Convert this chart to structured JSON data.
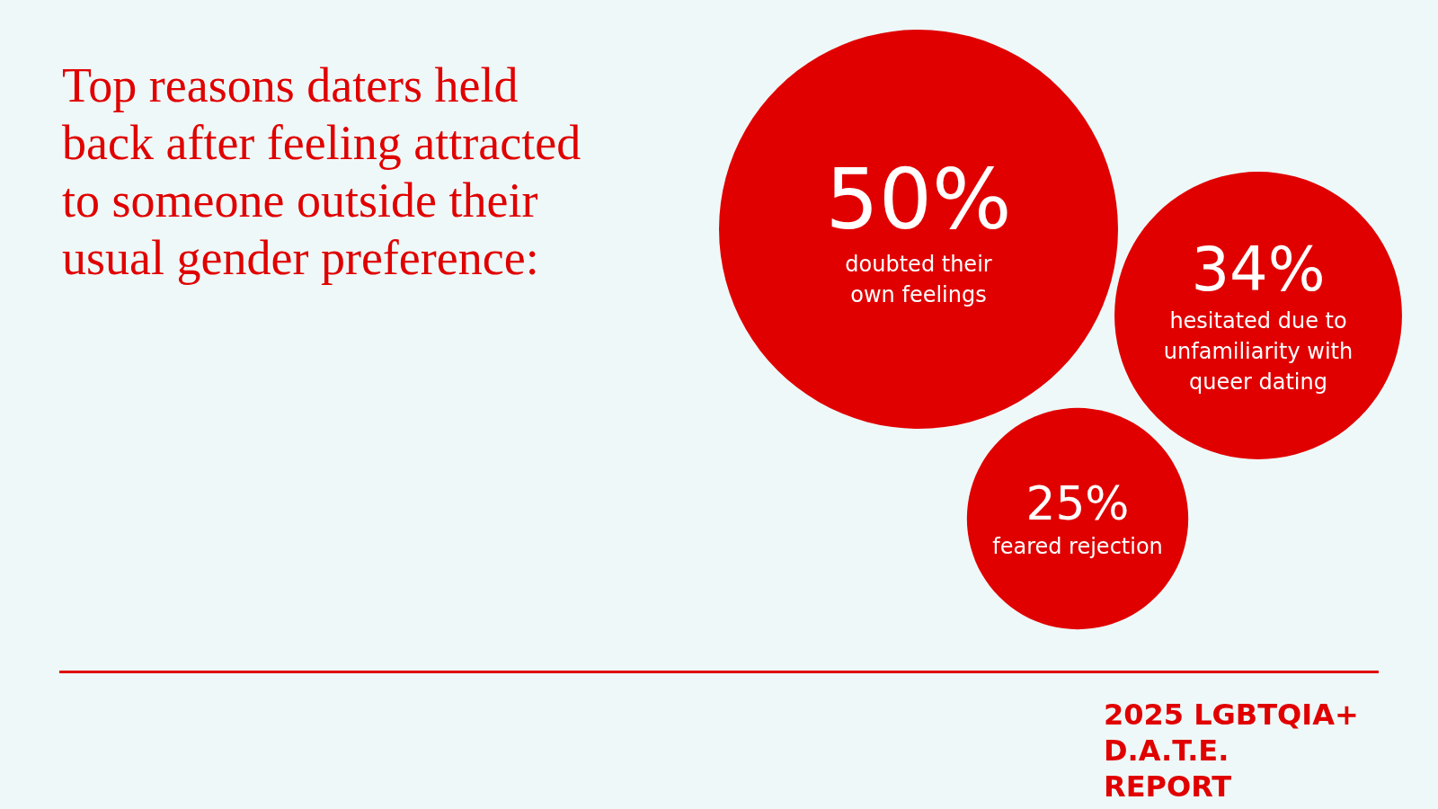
{
  "chart_data": {
    "type": "other",
    "title": "Top reasons daters held back after feeling attracted to someone outside their usual gender preference:",
    "categories": [
      "doubted their own feelings",
      "hesitated due to unfamiliarity with queer dating",
      "feared rejection"
    ],
    "values": [
      50,
      34,
      25
    ],
    "value_labels": [
      "50%",
      "34%",
      "25%"
    ],
    "color": "#e00000",
    "annotations": [
      "2025 LGBTQIA+ D.A.T.E. REPORT"
    ]
  }
}
